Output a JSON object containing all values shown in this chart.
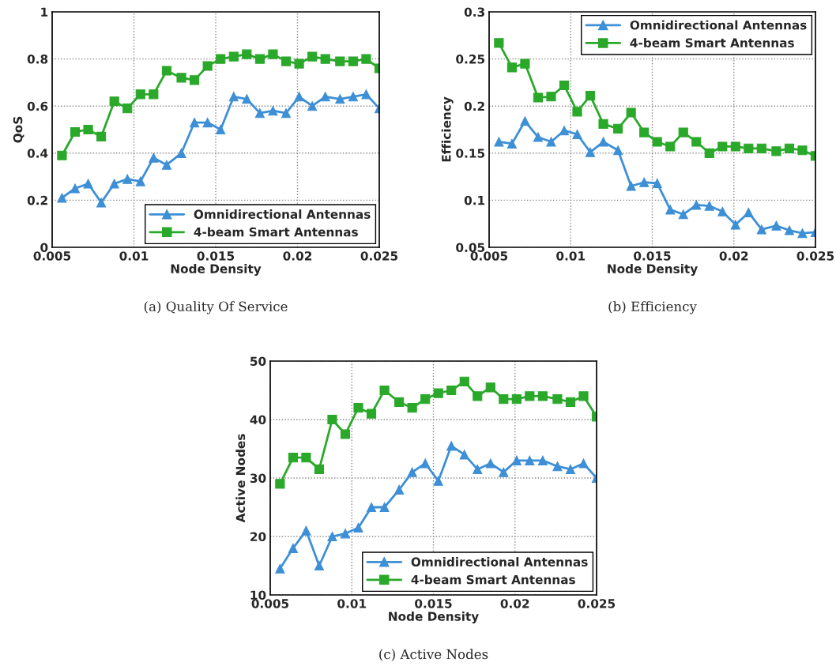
{
  "chart_data": [
    {
      "type": "line",
      "title": "(a) Quality Of Service",
      "xlabel": "Node Density",
      "ylabel": "QoS",
      "xlim": [
        0.005,
        0.025
      ],
      "xticks": [
        0.005,
        0.01,
        0.015,
        0.02,
        0.025
      ],
      "ylim": [
        0,
        1
      ],
      "yticks": [
        0,
        0.2,
        0.4,
        0.6,
        0.8,
        1
      ],
      "grid": true,
      "legend": "bottom right",
      "line_style": "solid",
      "x": [
        0.0056,
        0.0064,
        0.0072,
        0.008,
        0.0088,
        0.0096,
        0.0104,
        0.0112,
        0.012,
        0.0129,
        0.0137,
        0.0145,
        0.0153,
        0.0161,
        0.0169,
        0.0177,
        0.0185,
        0.0193,
        0.0201,
        0.0209,
        0.0217,
        0.0226,
        0.0234,
        0.0242,
        0.025
      ],
      "series": [
        {
          "name": "Omnidirectional Antennas",
          "color": "#3d8fd6",
          "marker": "triangle",
          "values": [
            0.21,
            0.25,
            0.27,
            0.19,
            0.27,
            0.29,
            0.28,
            0.38,
            0.35,
            0.4,
            0.53,
            0.53,
            0.5,
            0.64,
            0.63,
            0.57,
            0.58,
            0.57,
            0.64,
            0.6,
            0.64,
            0.63,
            0.64,
            0.65,
            0.59
          ]
        },
        {
          "name": "4-beam Smart Antennas",
          "color": "#2aa82a",
          "marker": "square",
          "values": [
            0.39,
            0.49,
            0.5,
            0.47,
            0.62,
            0.59,
            0.65,
            0.65,
            0.75,
            0.72,
            0.71,
            0.77,
            0.8,
            0.81,
            0.82,
            0.8,
            0.82,
            0.79,
            0.78,
            0.81,
            0.8,
            0.79,
            0.79,
            0.8,
            0.76
          ]
        }
      ]
    },
    {
      "type": "line",
      "title": "(b) Efficiency",
      "xlabel": "Node Density",
      "ylabel": "Efficiency",
      "xlim": [
        0.005,
        0.025
      ],
      "xticks": [
        0.005,
        0.01,
        0.015,
        0.02,
        0.025
      ],
      "ylim": [
        0.05,
        0.3
      ],
      "yticks": [
        0.05,
        0.1,
        0.15,
        0.2,
        0.25,
        0.3
      ],
      "grid": true,
      "legend": "top right",
      "line_style": "solid",
      "x": [
        0.0056,
        0.0064,
        0.0072,
        0.008,
        0.0088,
        0.0096,
        0.0104,
        0.0112,
        0.012,
        0.0129,
        0.0137,
        0.0145,
        0.0153,
        0.0161,
        0.0169,
        0.0177,
        0.0185,
        0.0193,
        0.0201,
        0.0209,
        0.0217,
        0.0226,
        0.0234,
        0.0242,
        0.025
      ],
      "series": [
        {
          "name": "Omnidirectional Antennas",
          "color": "#3d8fd6",
          "marker": "triangle",
          "values": [
            0.162,
            0.16,
            0.184,
            0.167,
            0.162,
            0.174,
            0.17,
            0.151,
            0.162,
            0.153,
            0.115,
            0.119,
            0.118,
            0.09,
            0.085,
            0.095,
            0.094,
            0.088,
            0.074,
            0.087,
            0.069,
            0.073,
            0.068,
            0.065,
            0.066
          ]
        },
        {
          "name": "4-beam Smart Antennas",
          "color": "#2aa82a",
          "marker": "square",
          "values": [
            0.267,
            0.241,
            0.245,
            0.209,
            0.21,
            0.222,
            0.194,
            0.211,
            0.181,
            0.176,
            0.193,
            0.172,
            0.162,
            0.157,
            0.172,
            0.162,
            0.15,
            0.157,
            0.157,
            0.155,
            0.155,
            0.152,
            0.155,
            0.153,
            0.147
          ]
        }
      ]
    },
    {
      "type": "line",
      "title": "(c) Active Nodes",
      "xlabel": "Node Density",
      "ylabel": "Active Nodes",
      "xlim": [
        0.005,
        0.025
      ],
      "xticks": [
        0.005,
        0.01,
        0.015,
        0.02,
        0.025
      ],
      "ylim": [
        10,
        50
      ],
      "yticks": [
        10,
        20,
        30,
        40,
        50
      ],
      "grid": true,
      "legend": "bottom right",
      "line_style": "solid",
      "x": [
        0.0056,
        0.0064,
        0.0072,
        0.008,
        0.0088,
        0.0096,
        0.0104,
        0.0112,
        0.012,
        0.0129,
        0.0137,
        0.0145,
        0.0153,
        0.0161,
        0.0169,
        0.0177,
        0.0185,
        0.0193,
        0.0201,
        0.0209,
        0.0217,
        0.0226,
        0.0234,
        0.0242,
        0.025
      ],
      "series": [
        {
          "name": "Omnidirectional Antennas",
          "color": "#3d8fd6",
          "marker": "triangle",
          "values": [
            14.5,
            18,
            21,
            15,
            20,
            20.5,
            21.5,
            25,
            25,
            28,
            31,
            32.5,
            29.5,
            35.5,
            34,
            31.5,
            32.5,
            31,
            33,
            33,
            33,
            32,
            31.5,
            32.5,
            30
          ]
        },
        {
          "name": "4-beam Smart Antennas",
          "color": "#2aa82a",
          "marker": "square",
          "values": [
            29,
            33.5,
            33.5,
            31.5,
            40,
            37.5,
            42,
            41,
            45,
            43,
            42,
            43.5,
            44.5,
            45,
            46.5,
            44,
            45.5,
            43.5,
            43.5,
            44,
            44,
            43.5,
            43,
            44,
            40.5
          ]
        }
      ]
    }
  ]
}
